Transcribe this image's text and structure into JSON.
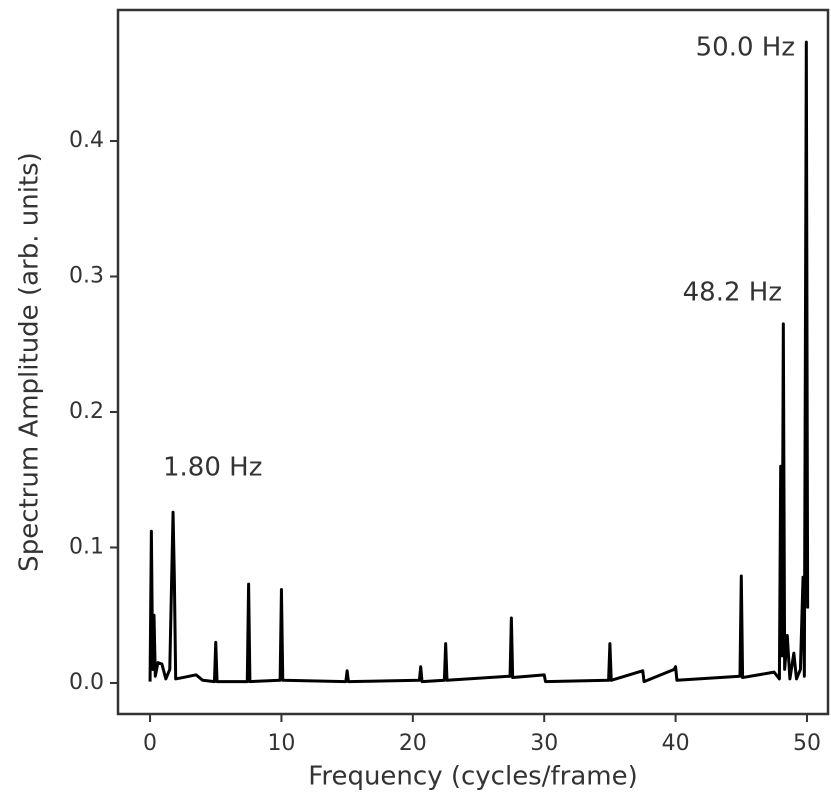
{
  "chart_data": {
    "type": "line",
    "xlabel": "Frequency (cycles/frame)",
    "ylabel": "Spectrum Amplitude (arb. units)",
    "annotations": [
      "50.0 Hz",
      "48.2 Hz",
      "1.80 Hz"
    ],
    "color": "#000000",
    "xlim": [
      -2.44,
      51.6
    ],
    "ylim": [
      -0.0229,
      0.4967
    ],
    "xticks": [
      0,
      10,
      20,
      30,
      40,
      50
    ],
    "yticks": [
      {
        "value": 0,
        "label": "0.0"
      },
      0.1,
      0.2,
      0.3,
      0.4
    ],
    "x": [
      0,
      0.1,
      0.2,
      0.3,
      0.4,
      0.6,
      0.9,
      1.2,
      1.5,
      1.75,
      1.85,
      1.95,
      2.5,
      3.5,
      4,
      4.9,
      5,
      5.1,
      7.4,
      7.5,
      7.6,
      9.9,
      10,
      10.1,
      14.9,
      15,
      15.1,
      20.5,
      20.6,
      20.7,
      22.4,
      22.5,
      22.6,
      27.4,
      27.5,
      27.6,
      30,
      30.1,
      34.9,
      35,
      35.1,
      37.5,
      37.6,
      39.9,
      40,
      40.1,
      44.9,
      45,
      45.1,
      47.5,
      47.9,
      48,
      48.1,
      48.2,
      48.3,
      48.5,
      48.7,
      49,
      49.2,
      49.5,
      49.7,
      49.8,
      49.95,
      50.05
    ],
    "values": [
      0.001,
      0.112,
      0.01,
      0.05,
      0.005,
      0.015,
      0.014,
      0.003,
      0.01,
      0.126,
      0.077,
      0.003,
      0.004,
      0.006,
      0.002,
      0.001,
      0.03,
      0.001,
      0.001,
      0.073,
      0.001,
      0.002,
      0.069,
      0.002,
      0.001,
      0.009,
      0.001,
      0.002,
      0.012,
      0.001,
      0.002,
      0.029,
      0.002,
      0.005,
      0.048,
      0.004,
      0.006,
      0.001,
      0.002,
      0.029,
      0.002,
      0.009,
      0.001,
      0.01,
      0.012,
      0.002,
      0.005,
      0.079,
      0.004,
      0.008,
      0.003,
      0.16,
      0.02,
      0.265,
      0.01,
      0.035,
      0.003,
      0.022,
      0.003,
      0.01,
      0.078,
      0.005,
      0.473,
      0.055
    ]
  }
}
